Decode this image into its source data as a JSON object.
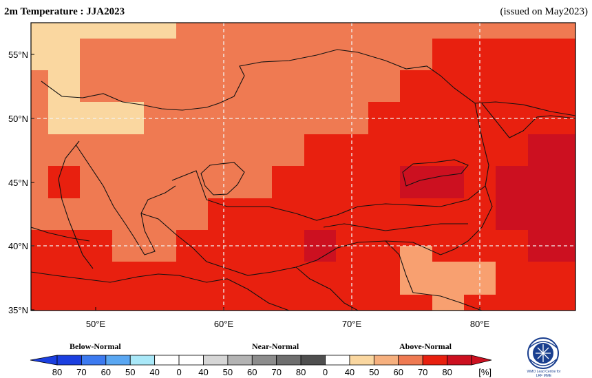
{
  "header": {
    "title": "2m Temperature : JJA2023",
    "issued": "(issued on May2023)"
  },
  "map": {
    "lat_labels": [
      "55°N",
      "50°N",
      "45°N",
      "40°N",
      "35°N"
    ],
    "lon_labels": [
      "50°E",
      "60°E",
      "70°E",
      "80°E"
    ],
    "colors": {
      "above_50": "#fad7a0",
      "above_60": "#f8a070",
      "above_70": "#ef7a52",
      "above_80": "#e8200f",
      "above_max": "#cc1020",
      "border": "#111111",
      "grid": "#f2f2f2"
    }
  },
  "legend": {
    "below": "Below-Normal",
    "near": "Near-Normal",
    "above": "Above-Normal",
    "ticks": [
      "80",
      "70",
      "60",
      "50",
      "40",
      "0",
      "40",
      "50",
      "60",
      "70",
      "80",
      "0",
      "40",
      "50",
      "60",
      "70",
      "80"
    ],
    "unit": "[%]",
    "colors": [
      "#1b3fe0",
      "#3c7af0",
      "#5aa7f2",
      "#a9e8f8",
      "#ffffff",
      "#ffffff",
      "#d6d6d6",
      "#b3b3b3",
      "#8c8c8c",
      "#6e6e6e",
      "#4f4f4f",
      "#ffffff",
      "#fad7a0",
      "#f6b07e",
      "#ef7a52",
      "#e8200f",
      "#cc1020"
    ]
  },
  "logo": {
    "caption_line1": "WMO Lead Centre for",
    "caption_line2": "LRF MME"
  }
}
